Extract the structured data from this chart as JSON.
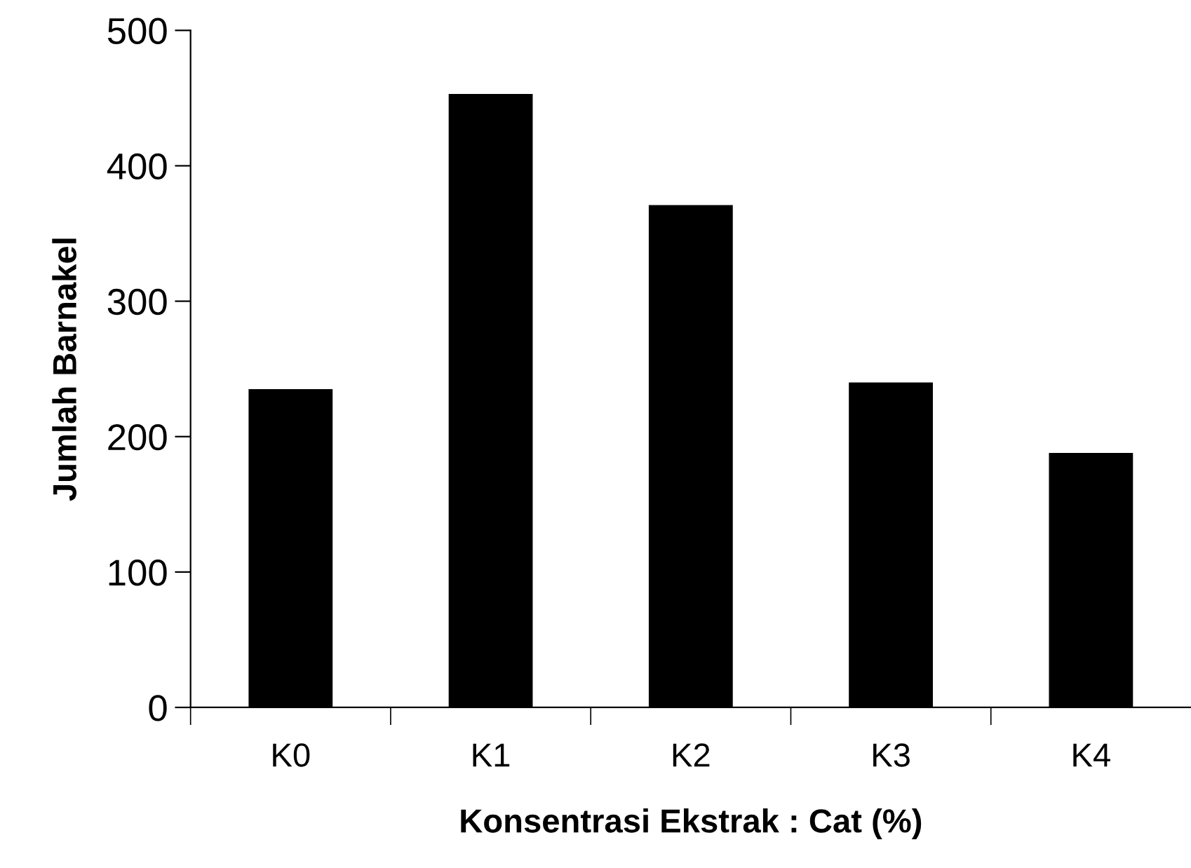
{
  "chart_data": {
    "type": "bar",
    "xlabel": "Konsentrasi Ekstrak : Cat (%)",
    "ylabel": "Jumlah Barnakel",
    "categories": [
      "K0",
      "K1",
      "K2",
      "K3",
      "K4"
    ],
    "values": [
      235,
      453,
      371,
      240,
      188
    ],
    "color": "#000000",
    "ylim": [
      0,
      500
    ],
    "yticks": [
      0,
      100,
      200,
      300,
      400,
      500
    ],
    "grid": false,
    "legend": false
  }
}
